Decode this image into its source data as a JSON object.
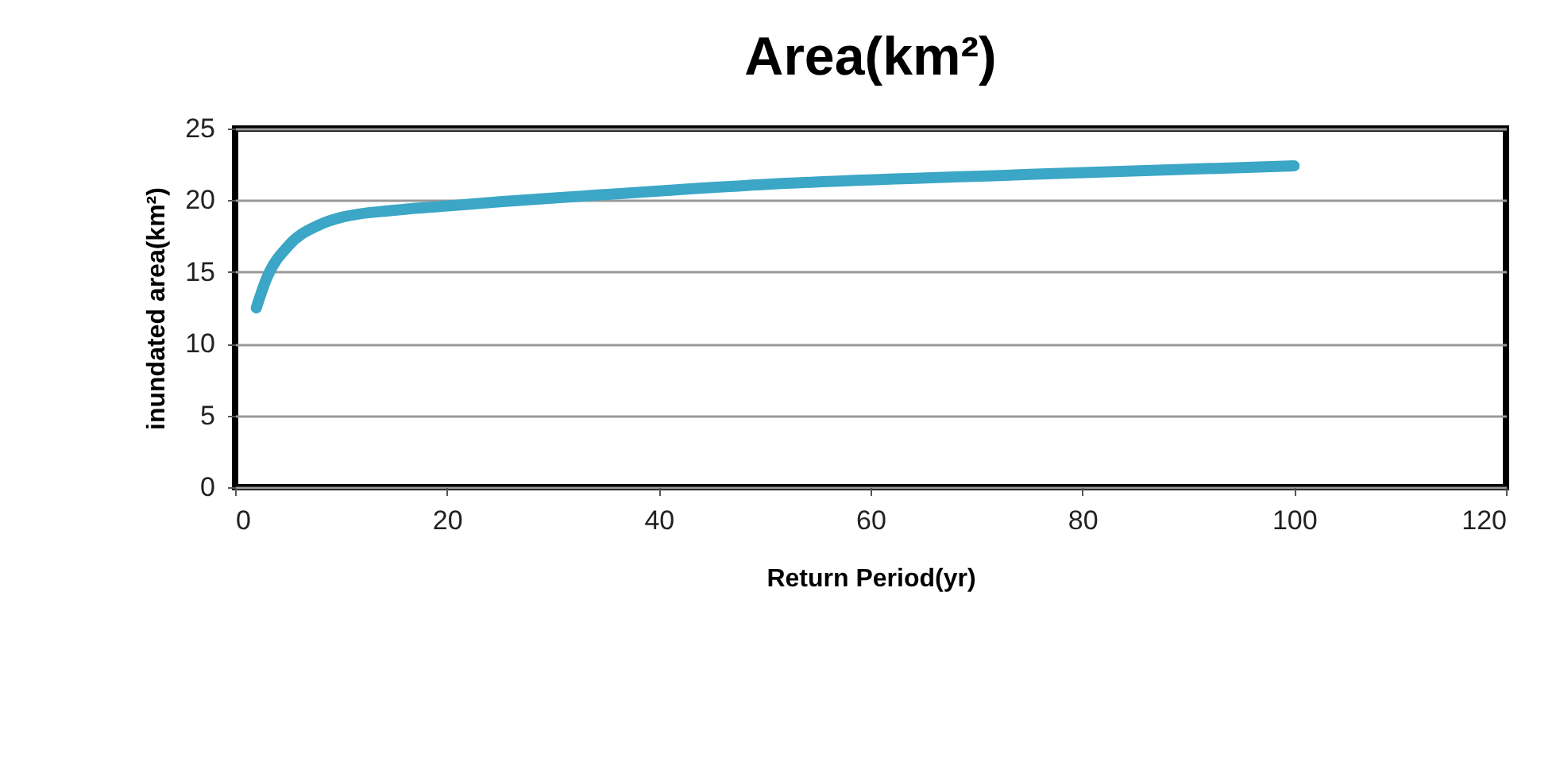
{
  "chart_data": {
    "type": "line",
    "title": "Area(km²)",
    "xlabel": "Return Period(yr)",
    "ylabel": "inundated area(km²)",
    "x": [
      2,
      3,
      5,
      8,
      10,
      15,
      20,
      25,
      33,
      50,
      75,
      100
    ],
    "series": [
      {
        "color": "#3ba6c6",
        "values": [
          12.5,
          14.6,
          16.8,
          18.3,
          18.8,
          19.3,
          19.6,
          19.9,
          20.3,
          21.1,
          21.8,
          22.4
        ]
      }
    ],
    "xlim": [
      0,
      120
    ],
    "xticks": [
      0,
      20,
      40,
      60,
      80,
      100,
      120
    ],
    "ylim": [
      0,
      25
    ],
    "yticks": [
      0,
      5,
      10,
      15,
      20,
      25
    ],
    "grid": "y",
    "line_style": "solid"
  }
}
